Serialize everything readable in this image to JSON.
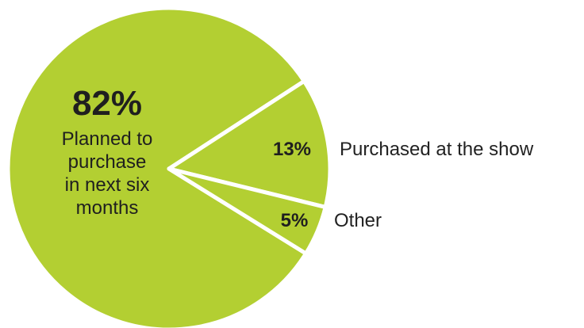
{
  "colors": {
    "slice_fill": "#b3cf32",
    "slice_stroke": "#ffffff",
    "inside_text": "#1f1f1f",
    "outside_text": "#222222"
  },
  "chart_data": {
    "type": "pie",
    "title": "",
    "slices": [
      {
        "label_lines": [
          "Planned to",
          "purchase",
          "in next six",
          "months"
        ],
        "value": 82,
        "value_label": "82%",
        "label_position": "inside"
      },
      {
        "label": "Purchased at the show",
        "value": 13,
        "value_label": "13%",
        "label_position": "outside-right"
      },
      {
        "label": "Other",
        "value": 5,
        "value_label": "5%",
        "label_position": "outside-right"
      }
    ]
  }
}
